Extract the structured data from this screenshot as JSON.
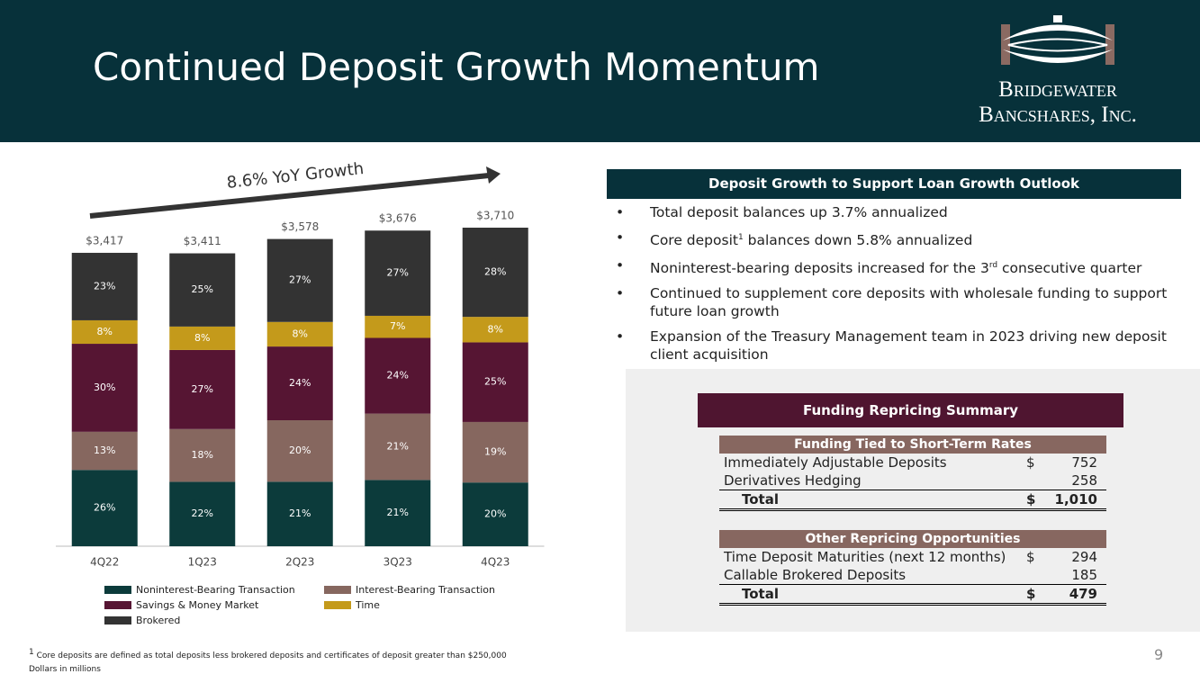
{
  "header": {
    "title": "Continued Deposit Growth Momentum",
    "logo_line1": "Bridgewater",
    "logo_line2": "Bancshares, Inc."
  },
  "chart_data": {
    "type": "bar",
    "stacked": true,
    "annotation": "8.6% YoY Growth",
    "categories": [
      "4Q22",
      "1Q23",
      "2Q23",
      "3Q23",
      "4Q23"
    ],
    "totals": {
      "values": [
        3417,
        3411,
        3578,
        3676,
        3710
      ],
      "value_labels": [
        "$3,417",
        "$3,411",
        "$3,578",
        "$3,676",
        "$3,710"
      ]
    },
    "series": [
      {
        "name": "Noninterest-Bearing Transaction",
        "color": "#0c3b3b",
        "values": [
          26,
          22,
          21,
          21,
          20
        ],
        "value_labels": [
          "26%",
          "22%",
          "21%",
          "21%",
          "20%"
        ]
      },
      {
        "name": "Interest-Bearing Transaction",
        "color": "#86675f",
        "values": [
          13,
          18,
          20,
          21,
          19
        ],
        "value_labels": [
          "13%",
          "18%",
          "20%",
          "21%",
          "19%"
        ]
      },
      {
        "name": "Savings & Money Market",
        "color": "#561533",
        "values": [
          30,
          27,
          24,
          24,
          25
        ],
        "value_labels": [
          "30%",
          "27%",
          "24%",
          "24%",
          "25%"
        ]
      },
      {
        "name": "Time",
        "color": "#c49a1b",
        "values": [
          8,
          8,
          8,
          7,
          8
        ],
        "value_labels": [
          "8%",
          "8%",
          "8%",
          "7%",
          "8%"
        ]
      },
      {
        "name": "Brokered",
        "color": "#333333",
        "values": [
          23,
          25,
          27,
          27,
          28
        ],
        "value_labels": [
          "23%",
          "25%",
          "27%",
          "27%",
          "28%"
        ]
      }
    ]
  },
  "outlook": {
    "title": "Deposit Growth to Support Loan Growth Outlook",
    "bullets": [
      {
        "text": "Total deposit balances up 3.7% annualized"
      },
      {
        "text": "Core deposit",
        "sup": "1",
        "after": " balances down 5.8% annualized"
      },
      {
        "text": "Noninterest-bearing deposits increased for the 3",
        "sup": "rd",
        "after": " consecutive quarter"
      },
      {
        "text": "Continued to supplement core deposits with wholesale funding to support future loan growth"
      },
      {
        "text": "Expansion of the Treasury Management team in 2023 driving new deposit client acquisition"
      }
    ]
  },
  "repricing": {
    "title": "Funding Repricing Summary",
    "sections": [
      {
        "heading": "Funding Tied to Short-Term Rates",
        "rows": [
          {
            "label": "Immediately Adjustable Deposits",
            "currency": "$",
            "amount": "752"
          },
          {
            "label": "Derivatives Hedging",
            "amount": "258"
          }
        ],
        "total": {
          "label": "Total",
          "currency": "$",
          "amount": "1,010"
        }
      },
      {
        "heading": "Other Repricing Opportunities",
        "rows": [
          {
            "label": "Time Deposit Maturities (next 12 months)",
            "currency": "$",
            "amount": "294"
          },
          {
            "label": "Callable Brokered Deposits",
            "amount": "185"
          }
        ],
        "total": {
          "label": "Total",
          "currency": "$",
          "amount": "479"
        }
      }
    ]
  },
  "footnote": {
    "sup": "1",
    "text": "Core deposits are defined as total deposits less brokered deposits and certificates of deposit greater than $250,000",
    "note": "Dollars in millions"
  },
  "page_number": "9"
}
